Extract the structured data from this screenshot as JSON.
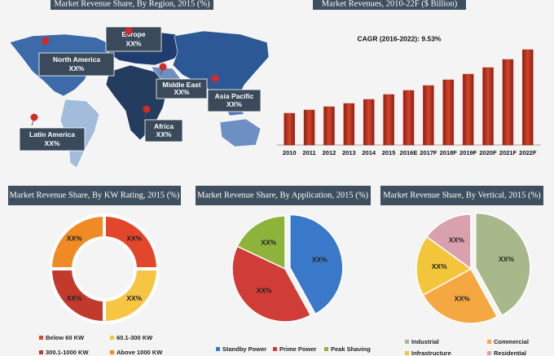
{
  "map": {
    "title": "Market Revenue Share, By Region, 2015 (%)",
    "regions": [
      {
        "name": "Europe",
        "label": "XX%"
      },
      {
        "name": "North America",
        "label": "XX%"
      },
      {
        "name": "Middle East",
        "label": "XX%"
      },
      {
        "name": "Asia Pacific",
        "label": "XX%"
      },
      {
        "name": "Africa",
        "label": "XX%"
      },
      {
        "name": "Latin America",
        "label": "XX%"
      }
    ]
  },
  "chart_data": [
    {
      "type": "bar",
      "title": "Market Revenues, 2010-22F ($ Billion)",
      "subtitle": "CAGR (2016-2022): 9.53%",
      "categories": [
        "2010",
        "2011",
        "2012",
        "2013",
        "2014",
        "2015",
        "2016E",
        "2017F",
        "2018F",
        "2019F",
        "2020F",
        "2021F",
        "2022F"
      ],
      "values": [
        39,
        43,
        47,
        51,
        56,
        62,
        67,
        73,
        80,
        87,
        95,
        105,
        117
      ],
      "color": "#b3301e",
      "ylim": [
        0,
        120
      ]
    },
    {
      "type": "donut",
      "title": "Market Revenue Share, By KW Rating, 2015 (%)",
      "categories": [
        "Below 60 KW",
        "60.1-300 KW",
        "300.1-1000 KW",
        "Above 1000 KW"
      ],
      "values": [
        25,
        25,
        25,
        25
      ],
      "value_labels": [
        "XX%",
        "XX%",
        "XX%",
        "XX%"
      ],
      "colors": [
        "#e2462b",
        "#f6c544",
        "#c23a2b",
        "#f08a25"
      ]
    },
    {
      "type": "pie",
      "title": "Market Revenue Share, By Application, 2015 (%)",
      "categories": [
        "Standby Power",
        "Prime Power",
        "Peak Shaving"
      ],
      "values": [
        42,
        40,
        18
      ],
      "value_labels": [
        "XX%",
        "XX%",
        "XX%"
      ],
      "colors": [
        "#3a78c9",
        "#d03c37",
        "#8db33a"
      ]
    },
    {
      "type": "pie",
      "title": "Market Revenue Share, By Vertical, 2015 (%)",
      "categories": [
        "Industrial",
        "Commercial",
        "Infrastructure",
        "Residential"
      ],
      "values": [
        42,
        25,
        18,
        15
      ],
      "value_labels": [
        "XX%",
        "XX%",
        "XX%",
        "XX%"
      ],
      "colors": [
        "#a7b98b",
        "#f5a742",
        "#f3c53a",
        "#d9a1ae"
      ]
    }
  ]
}
